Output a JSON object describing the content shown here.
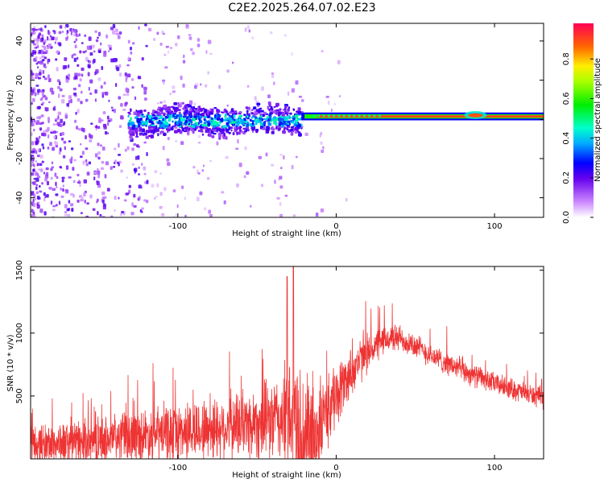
{
  "figure_title": "C2E2.2025.264.07.02.E23",
  "chart_data": [
    {
      "type": "heatmap",
      "title": "C2E2.2025.264.07.02.E23",
      "xlabel": "Height of straight line (km)",
      "ylabel": "Frequency (Hz)",
      "xlim": [
        -193,
        131
      ],
      "ylim": [
        -50,
        49
      ],
      "xticks": [
        -100,
        0,
        100
      ],
      "xtick_labels": [
        "-100",
        "0",
        "100"
      ],
      "yticks": [
        -40,
        -20,
        0,
        20,
        40
      ],
      "ytick_labels": [
        "-40",
        "-20",
        "0",
        "20",
        "40"
      ],
      "colorbar": {
        "label": "Normalized spectral amplitude",
        "range": [
          0.0,
          0.98
        ],
        "ticks": [
          0.0,
          0.2,
          0.4,
          0.6,
          0.8
        ],
        "tick_labels": [
          "0.0",
          "0.2",
          "0.4",
          "0.6",
          "0.8"
        ]
      },
      "features": [
        {
          "name": "scattered noise region",
          "x_range": [
            -193,
            -120
          ],
          "freq_range": [
            -50,
            49
          ],
          "amplitude": 0.15
        },
        {
          "name": "sparse noise region",
          "x_range": [
            -120,
            -25
          ],
          "freq_range": [
            -50,
            49
          ],
          "amplitude": 0.05
        },
        {
          "name": "noisy band",
          "x_range": [
            -130,
            -22
          ],
          "freq_center": 0,
          "freq_halfwidth": 6,
          "amplitude": 0.35
        },
        {
          "name": "strong band",
          "x_range": [
            -22,
            131
          ],
          "freq_center": 1.5,
          "freq_halfwidth": 1.5,
          "amplitude": 0.95
        }
      ]
    },
    {
      "type": "line",
      "title": "",
      "xlabel": "Height of straight line (km)",
      "ylabel": "SNR (10 * v/v)",
      "xlim": [
        -193,
        131
      ],
      "ylim": [
        0,
        1530
      ],
      "xticks": [
        -100,
        0,
        100
      ],
      "xtick_labels": [
        "-100",
        "0",
        "100"
      ],
      "yticks": [
        500,
        1000,
        1500
      ],
      "ytick_labels": [
        "500",
        "1000",
        "1500"
      ],
      "color": "#ee3333",
      "envelope": {
        "x": [
          -193,
          -160,
          -140,
          -120,
          -100,
          -80,
          -60,
          -45,
          -35,
          -30,
          -25,
          -20,
          -15,
          -10,
          -5,
          0,
          10,
          20,
          30,
          35,
          40,
          50,
          60,
          80,
          100,
          120,
          131
        ],
        "base": [
          110,
          130,
          160,
          190,
          210,
          240,
          270,
          300,
          320,
          280,
          240,
          180,
          180,
          260,
          400,
          500,
          700,
          850,
          940,
          960,
          960,
          900,
          820,
          700,
          600,
          520,
          480
        ],
        "amp": [
          200,
          210,
          230,
          260,
          280,
          300,
          320,
          360,
          420,
          600,
          700,
          650,
          500,
          420,
          350,
          300,
          240,
          180,
          140,
          130,
          130,
          120,
          110,
          110,
          100,
          100,
          100
        ]
      },
      "peaks": [
        {
          "x": -27,
          "y": 1530
        },
        {
          "x": -31,
          "y": 1450
        }
      ]
    }
  ]
}
